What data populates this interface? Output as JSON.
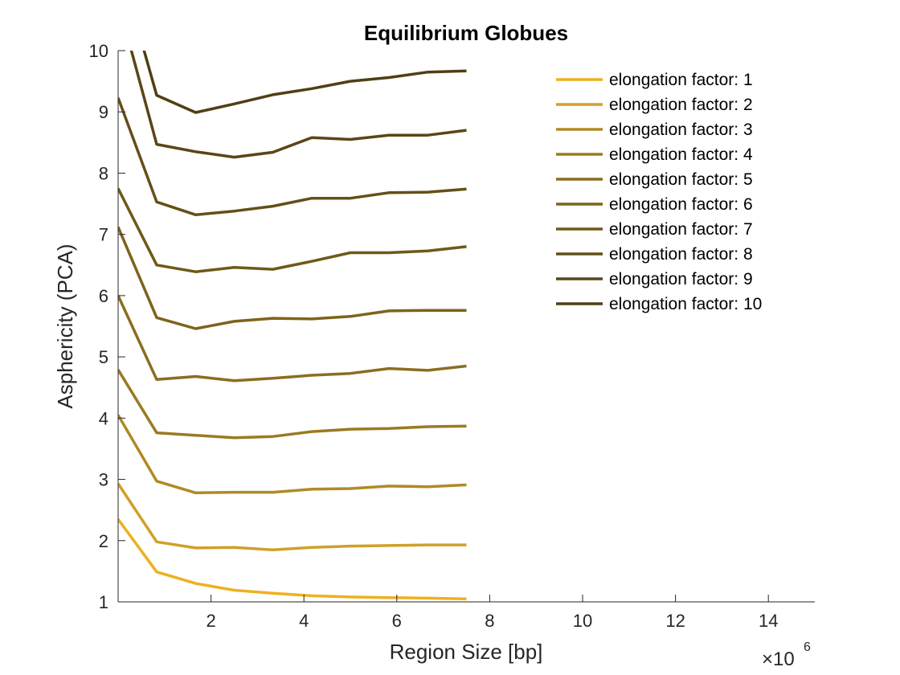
{
  "chart_data": {
    "type": "line",
    "title": "Equilibrium Globues",
    "xlabel": "Region Size [bp]",
    "ylabel": "Asphericity (PCA)",
    "x_exponent_base": "×10",
    "x_exponent_power": "6",
    "xlim": [
      0,
      15
    ],
    "ylim": [
      1,
      10
    ],
    "xticks": [
      2,
      4,
      6,
      8,
      10,
      12,
      14
    ],
    "yticks": [
      1,
      2,
      3,
      4,
      5,
      6,
      7,
      8,
      9,
      10
    ],
    "grid": false,
    "legend_position": "top-right",
    "x": [
      0.0,
      0.83,
      1.67,
      2.5,
      3.33,
      4.17,
      5.0,
      5.83,
      6.67,
      7.5
    ],
    "series": [
      {
        "name": "elongation factor: 1",
        "color": "#EDB120",
        "values": [
          2.35,
          1.49,
          1.3,
          1.19,
          1.14,
          1.1,
          1.08,
          1.07,
          1.06,
          1.05
        ]
      },
      {
        "name": "elongation factor: 2",
        "color": "#CFA02A",
        "values": [
          2.93,
          1.98,
          1.88,
          1.89,
          1.85,
          1.89,
          1.91,
          1.92,
          1.93,
          1.93
        ]
      },
      {
        "name": "elongation factor: 3",
        "color": "#B08A25",
        "values": [
          4.05,
          2.97,
          2.78,
          2.79,
          2.79,
          2.84,
          2.85,
          2.89,
          2.88,
          2.91
        ]
      },
      {
        "name": "elongation factor: 4",
        "color": "#9A7B22",
        "values": [
          4.79,
          3.76,
          3.72,
          3.68,
          3.7,
          3.78,
          3.82,
          3.83,
          3.86,
          3.87
        ]
      },
      {
        "name": "elongation factor: 5",
        "color": "#8A6E1E",
        "values": [
          6.0,
          4.63,
          4.68,
          4.61,
          4.65,
          4.7,
          4.73,
          4.81,
          4.78,
          4.85
        ]
      },
      {
        "name": "elongation factor: 6",
        "color": "#7D631B",
        "values": [
          7.12,
          5.64,
          5.46,
          5.58,
          5.63,
          5.62,
          5.66,
          5.75,
          5.76,
          5.76
        ]
      },
      {
        "name": "elongation factor: 7",
        "color": "#705818",
        "values": [
          7.75,
          6.5,
          6.39,
          6.46,
          6.43,
          6.56,
          6.7,
          6.7,
          6.73,
          6.8
        ]
      },
      {
        "name": "elongation factor: 8",
        "color": "#644F17",
        "values": [
          9.23,
          7.53,
          7.32,
          7.38,
          7.46,
          7.59,
          7.59,
          7.68,
          7.69,
          7.74
        ]
      },
      {
        "name": "elongation factor: 9",
        "color": "#5A4616",
        "values": [
          10.8,
          8.47,
          8.35,
          8.26,
          8.34,
          8.58,
          8.55,
          8.62,
          8.62,
          8.7
        ]
      },
      {
        "name": "elongation factor: 10",
        "color": "#503F14",
        "values": [
          11.5,
          9.27,
          8.99,
          9.13,
          9.28,
          9.38,
          9.5,
          9.56,
          9.65,
          9.67
        ]
      }
    ]
  }
}
